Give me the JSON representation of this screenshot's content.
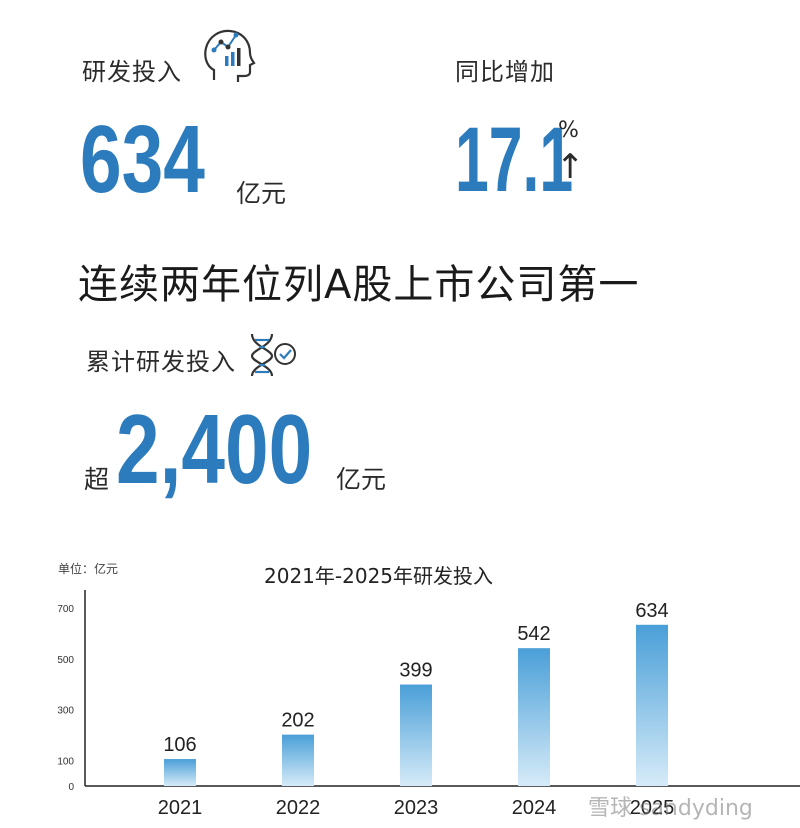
{
  "rd_investment": {
    "label": "研发投入",
    "value": "634",
    "unit": "亿元"
  },
  "yoy_growth": {
    "label": "同比增加",
    "value": "17.1",
    "unit": "%",
    "arrow": "↑"
  },
  "headline": "连续两年位列A股上市公司第一",
  "cumulative": {
    "label": "累计研发投入",
    "prefix": "超",
    "value": "2,400",
    "unit": "亿元"
  },
  "icons": {
    "head": "head-analytics-icon",
    "dna": "dna-check-icon"
  },
  "colors": {
    "accent": "#2b7bbd",
    "bar_top": "#4a9fd8",
    "bar_bottom": "#d6ebf8"
  },
  "watermark": "雪球 sandyding",
  "chart_data": {
    "type": "bar",
    "title": "2021年-2025年研发投入",
    "unit_note": "单位：亿元",
    "categories": [
      "2021",
      "2022",
      "2023",
      "2024",
      "2025"
    ],
    "values": [
      106,
      202,
      399,
      542,
      634
    ],
    "data_labels": [
      "106",
      "202",
      "399",
      "542",
      "634"
    ],
    "yticks": [
      0,
      100,
      300,
      500,
      700
    ],
    "ylim": [
      0,
      700
    ],
    "grid": false,
    "legend": "none"
  }
}
